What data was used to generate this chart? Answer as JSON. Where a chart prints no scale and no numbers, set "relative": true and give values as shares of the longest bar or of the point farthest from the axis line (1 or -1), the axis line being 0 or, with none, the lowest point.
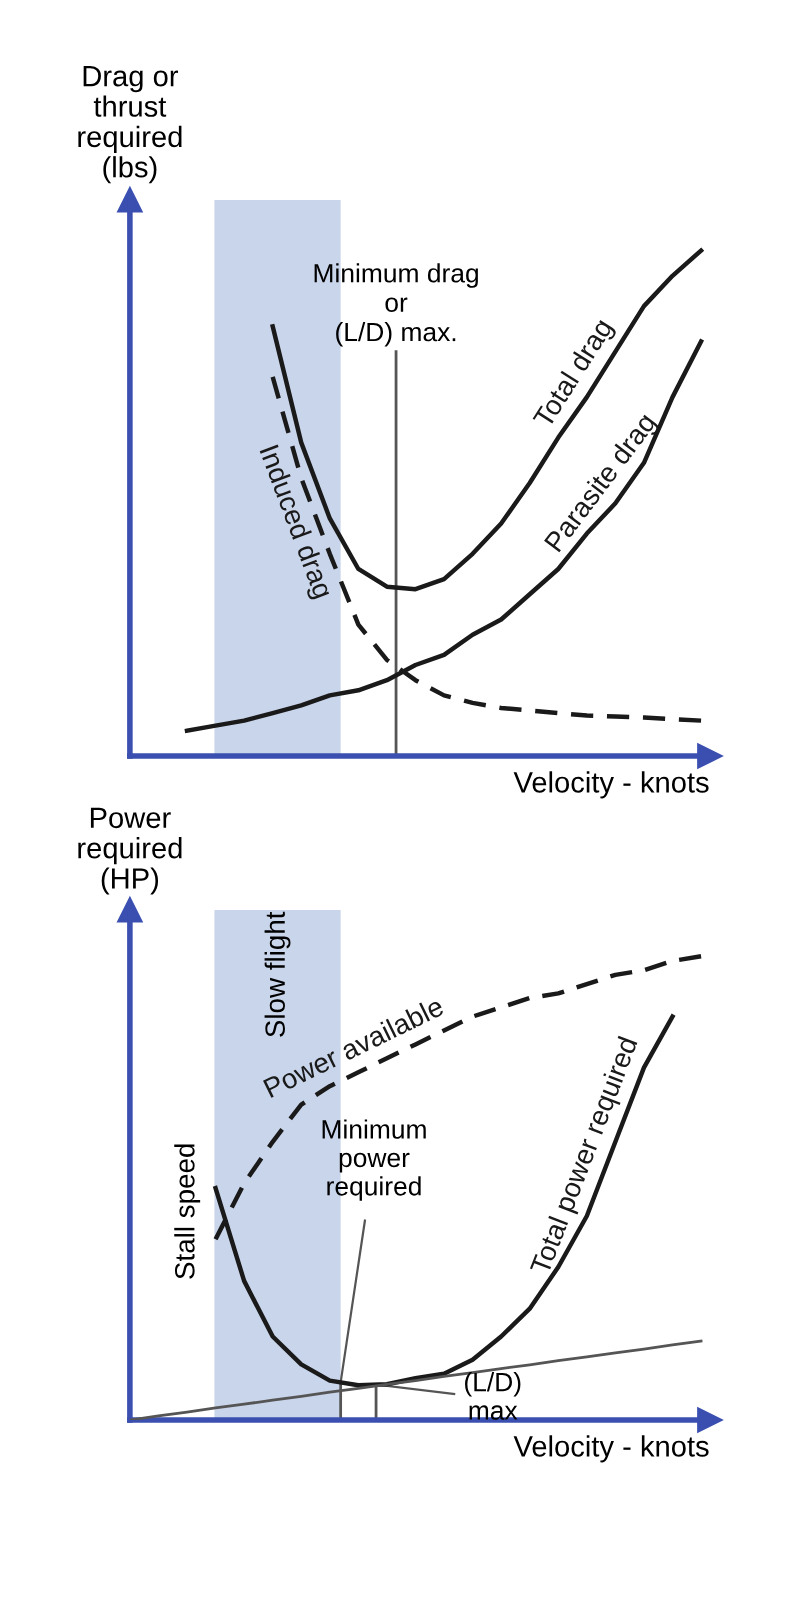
{
  "chart_data": [
    {
      "type": "line",
      "relative": true,
      "xlabel": "Velocity - knots",
      "ylabel": "Drag or\nthrust\nrequired\n(lbs)",
      "categories": [
        null,
        null,
        null,
        null,
        null,
        null,
        null,
        null,
        null,
        null,
        null,
        null,
        null,
        null,
        null,
        null,
        null,
        null,
        null,
        null,
        null
      ],
      "series": [
        {
          "name": "Total drag",
          "color": "#1a1a1a",
          "line_style": "solid",
          "values": [
            null,
            null,
            null,
            null,
            null,
            0.85,
            0.62,
            0.47,
            0.37,
            0.335,
            0.33,
            0.35,
            0.4,
            0.46,
            0.54,
            0.63,
            0.71,
            0.8,
            0.89,
            0.95,
            1.0
          ]
        },
        {
          "name": "Parasite drag",
          "color": "#1a1a1a",
          "line_style": "solid",
          "values": [
            null,
            null,
            0.05,
            0.06,
            0.07,
            0.085,
            0.1,
            0.12,
            0.13,
            0.15,
            0.18,
            0.2,
            0.24,
            0.27,
            0.32,
            0.37,
            0.44,
            0.5,
            0.58,
            0.71,
            0.82
          ]
        },
        {
          "name": "Induced drag",
          "color": "#1a1a1a",
          "line_style": "dashed",
          "values": [
            null,
            null,
            null,
            null,
            null,
            0.75,
            0.55,
            0.4,
            0.26,
            0.19,
            0.15,
            0.12,
            0.105,
            0.095,
            0.09,
            0.085,
            0.08,
            0.078,
            0.076,
            0.073,
            0.07
          ]
        }
      ],
      "annotations": [
        "Minimum drag\nor\n(L/D) max."
      ]
    },
    {
      "type": "line",
      "relative": true,
      "xlabel": "Velocity - knots",
      "ylabel": "Power\nrequired\n(HP)",
      "categories": [
        null,
        null,
        null,
        null,
        null,
        null,
        null,
        null,
        null,
        null,
        null,
        null,
        null,
        null,
        null,
        null,
        null,
        null,
        null,
        null,
        null
      ],
      "series": [
        {
          "name": "Total power required",
          "color": "#1a1a1a",
          "line_style": "solid",
          "values": [
            null,
            null,
            null,
            0.5,
            0.3,
            0.18,
            0.12,
            0.085,
            0.075,
            0.077,
            0.09,
            0.1,
            0.13,
            0.18,
            0.24,
            0.33,
            0.44,
            0.6,
            0.76,
            0.87,
            null
          ]
        },
        {
          "name": "Power available",
          "color": "#1a1a1a",
          "line_style": "dashed",
          "values": [
            null,
            null,
            null,
            0.39,
            0.51,
            0.6,
            0.68,
            0.72,
            0.75,
            0.78,
            0.81,
            0.84,
            0.87,
            0.89,
            0.91,
            0.92,
            0.94,
            0.96,
            0.97,
            0.99,
            1.0
          ]
        },
        {
          "color": "#555555",
          "line_style": "solid",
          "values": [
            0,
            0.009,
            0.017,
            0.026,
            0.034,
            0.043,
            0.051,
            0.06,
            0.068,
            0.077,
            0.085,
            0.094,
            0.102,
            0.111,
            0.119,
            0.128,
            0.136,
            0.145,
            0.153,
            0.162,
            0.17
          ]
        }
      ],
      "annotations": [
        "Slow flight",
        "Stall speed",
        "Minimum\npower\nrequired",
        "(L/D)\nmax"
      ]
    }
  ]
}
